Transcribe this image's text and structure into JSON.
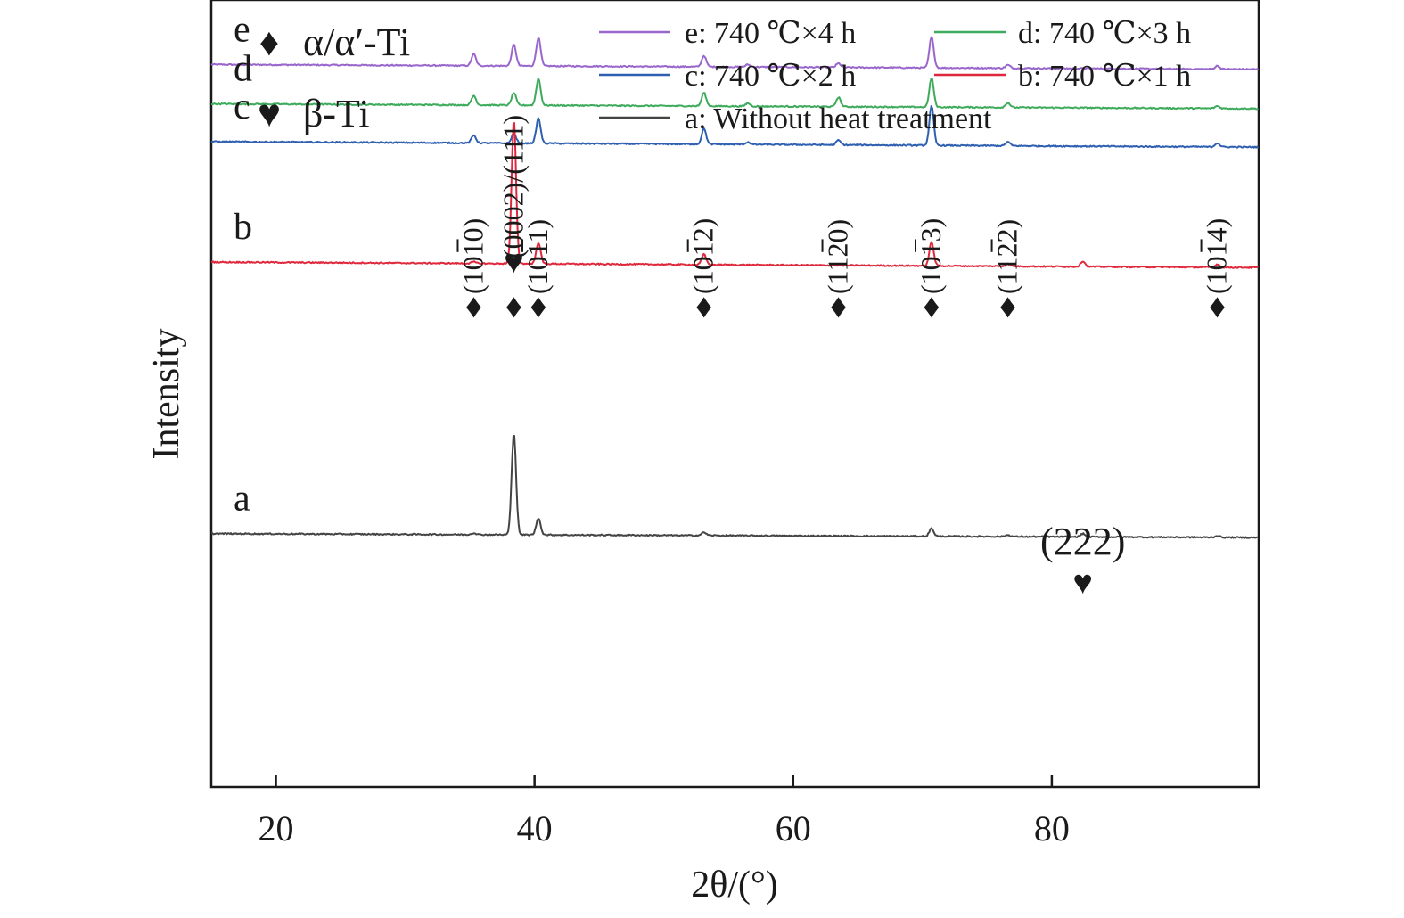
{
  "chart_data": {
    "type": "line",
    "xlabel": "2θ/(°)",
    "ylabel": "Intensity",
    "xlim": [
      15,
      96
    ],
    "xticks": [
      20,
      40,
      60,
      80
    ],
    "y_axis_ticks": false,
    "grid": false,
    "legend": {
      "placement": "top-right",
      "entries": [
        {
          "series": "e",
          "label": "e: 740 ℃×4 h"
        },
        {
          "series": "d",
          "label": "d: 740 ℃×3 h"
        },
        {
          "series": "c",
          "label": "c: 740 ℃×2 h"
        },
        {
          "series": "b",
          "label": "b: 740 ℃×1 h"
        },
        {
          "series": "a",
          "label": "a: Without heat treatment"
        }
      ]
    },
    "phase_legend": [
      {
        "symbol": "♦",
        "label": "α/α′-Ti"
      },
      {
        "symbol": "♥",
        "label": "β-Ti"
      }
    ],
    "series": [
      {
        "name": "e",
        "label": "e: 740 ℃×4 h",
        "color": "#9966CC",
        "baseline_start": 0.918,
        "baseline_end": 0.912,
        "peaks": [
          [
            35.3,
            0.015
          ],
          [
            38.4,
            0.027
          ],
          [
            40.3,
            0.036
          ],
          [
            53.1,
            0.014
          ],
          [
            56.5,
            0.003
          ],
          [
            63.5,
            0.005
          ],
          [
            70.7,
            0.039
          ],
          [
            76.6,
            0.004
          ],
          [
            92.8,
            0.004
          ]
        ]
      },
      {
        "name": "d",
        "label": "d: 740 ℃×3 h",
        "color": "#3DAA5C",
        "baseline_start": 0.868,
        "baseline_end": 0.862,
        "peaks": [
          [
            35.3,
            0.012
          ],
          [
            38.4,
            0.016
          ],
          [
            40.3,
            0.034
          ],
          [
            53.1,
            0.017
          ],
          [
            56.5,
            0.004
          ],
          [
            63.5,
            0.012
          ],
          [
            70.7,
            0.037
          ],
          [
            76.6,
            0.006
          ],
          [
            92.8,
            0.003
          ]
        ]
      },
      {
        "name": "c",
        "label": "c: 740 ℃×2 h",
        "color": "#2E5FB0",
        "baseline_start": 0.82,
        "baseline_end": 0.813,
        "peaks": [
          [
            35.3,
            0.01
          ],
          [
            38.4,
            0.013
          ],
          [
            40.3,
            0.032
          ],
          [
            53.1,
            0.02
          ],
          [
            56.5,
            0.003
          ],
          [
            63.5,
            0.006
          ],
          [
            70.7,
            0.05
          ],
          [
            76.6,
            0.005
          ],
          [
            92.8,
            0.005
          ]
        ]
      },
      {
        "name": "b",
        "label": "b: 740 ℃×1 h",
        "color": "#E0283C",
        "baseline_start": 0.667,
        "baseline_end": 0.66,
        "peaks": [
          [
            35.3,
            0.002
          ],
          [
            38.4,
            0.183
          ],
          [
            40.3,
            0.027
          ],
          [
            53.1,
            0.013
          ],
          [
            70.7,
            0.03
          ],
          [
            76.6,
            0.003
          ],
          [
            82.4,
            0.007
          ],
          [
            92.8,
            0.004
          ]
        ]
      },
      {
        "name": "a",
        "label": "a: Without heat treatment",
        "color": "#444444",
        "baseline_start": 0.322,
        "baseline_end": 0.317,
        "peaks": [
          [
            35.3,
            0.002
          ],
          [
            38.4,
            0.13
          ],
          [
            40.3,
            0.021
          ],
          [
            53.1,
            0.004
          ],
          [
            70.7,
            0.01
          ],
          [
            76.6,
            0.002
          ],
          [
            82.4,
            0.004
          ],
          [
            92.8,
            0.002
          ]
        ]
      }
    ],
    "annotations": [
      {
        "hkl": "(1010)",
        "bar_over": "1",
        "x": 35.3,
        "marker": "♦"
      },
      {
        "hkl": "(0002)/(111)",
        "bar_over": "",
        "x": 38.4,
        "marker": "♦",
        "extra_marker": "♥"
      },
      {
        "hkl": "(1011)",
        "bar_over": "1",
        "x": 40.3,
        "marker": "♦"
      },
      {
        "hkl": "(1012)",
        "bar_over": "1",
        "x": 53.1,
        "marker": "♦"
      },
      {
        "hkl": "(1120)",
        "bar_over": "2",
        "x": 63.5,
        "marker": "♦"
      },
      {
        "hkl": "(1013)",
        "bar_over": "1",
        "x": 70.7,
        "marker": "♦"
      },
      {
        "hkl": "(1122)",
        "bar_over": "2",
        "x": 76.6,
        "marker": "♦"
      },
      {
        "hkl": "(1014)",
        "bar_over": "1",
        "x": 92.8,
        "marker": "♦"
      },
      {
        "hkl": "(222)",
        "bar_over": "",
        "x": 82.4,
        "marker": "♥"
      }
    ]
  }
}
